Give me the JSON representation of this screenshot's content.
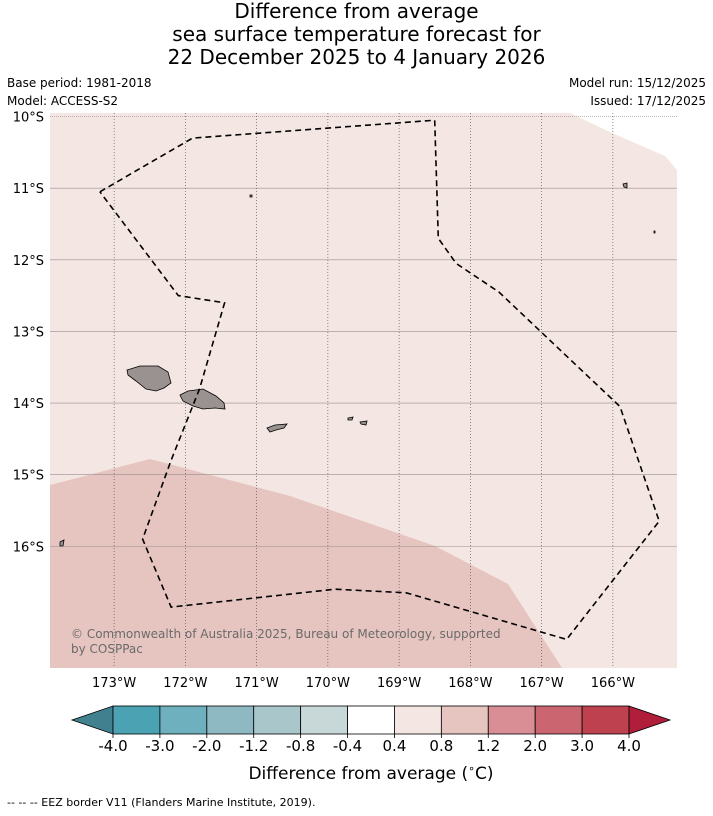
{
  "title_lines": [
    "Difference from average",
    "sea surface temperature forecast for",
    "22 December 2025 to 4 January 2026"
  ],
  "meta": {
    "base_period": "Base period: 1981-2018",
    "model": "Model: ACCESS-S2",
    "model_run": "Model run: 15/12/2025",
    "issued": "Issued: 17/12/2025"
  },
  "map": {
    "lat_labels": [
      "10°S",
      "11°S",
      "12°S",
      "13°S",
      "14°S",
      "15°S",
      "16°S"
    ],
    "lon_labels": [
      "173°W",
      "172°W",
      "171°W",
      "170°W",
      "169°W",
      "168°W",
      "167°W",
      "166°W"
    ],
    "lat_values": [
      -10,
      -11,
      -12,
      -13,
      -14,
      -15,
      -16
    ],
    "lon_values": [
      -173,
      -172,
      -171,
      -170,
      -169,
      -168,
      -167,
      -166
    ],
    "extent": {
      "lon_min": -173.9,
      "lon_max": -165.1,
      "lat_max": -9.95,
      "lat_min": -17.7
    },
    "copyright": [
      "© Commonwealth of Australia 2025, Bureau of Meteorology, supported",
      "by COSPPac"
    ],
    "fill_colors": {
      "light": "#f4e6e3",
      "mid": "#e6c5c0",
      "land": "#9a9291"
    },
    "eez_border": [
      [
        -173.2,
        -11.05
      ],
      [
        -171.9,
        -10.3
      ],
      [
        -168.5,
        -10.05
      ],
      [
        -168.45,
        -11.7
      ],
      [
        -168.2,
        -12.05
      ],
      [
        -167.6,
        -12.45
      ],
      [
        -165.9,
        -14.05
      ],
      [
        -165.35,
        -15.65
      ],
      [
        -166.65,
        -17.3
      ],
      [
        -168.9,
        -16.65
      ],
      [
        -169.9,
        -16.6
      ],
      [
        -172.2,
        -16.85
      ],
      [
        -172.6,
        -15.9
      ],
      [
        -172.2,
        -14.8
      ],
      [
        -171.8,
        -13.8
      ],
      [
        -171.45,
        -12.6
      ],
      [
        -172.1,
        -12.5
      ],
      [
        -173.2,
        -11.05
      ]
    ]
  },
  "colorbar": {
    "colors": [
      "#41808f",
      "#4aa2b2",
      "#6fb0be",
      "#8eb9c3",
      "#a9c7cb",
      "#c8d8d8",
      "#ffffff",
      "#f4e6e3",
      "#e6c5c0",
      "#d98e96",
      "#cb6670",
      "#be4150",
      "#b01e3a"
    ],
    "tick_labels": [
      "-4.0",
      "-3.0",
      "-2.0",
      "-1.2",
      "-0.8",
      "-0.4",
      "0.4",
      "0.8",
      "1.2",
      "2.0",
      "3.0",
      "4.0"
    ],
    "label": "Difference from average ($^\\circ$C)",
    "label_text": "Difference from average (",
    "label_unit": "C)"
  },
  "footer": "--  --  -- EEZ border V11 (Flanders Marine Institute, 2019)."
}
